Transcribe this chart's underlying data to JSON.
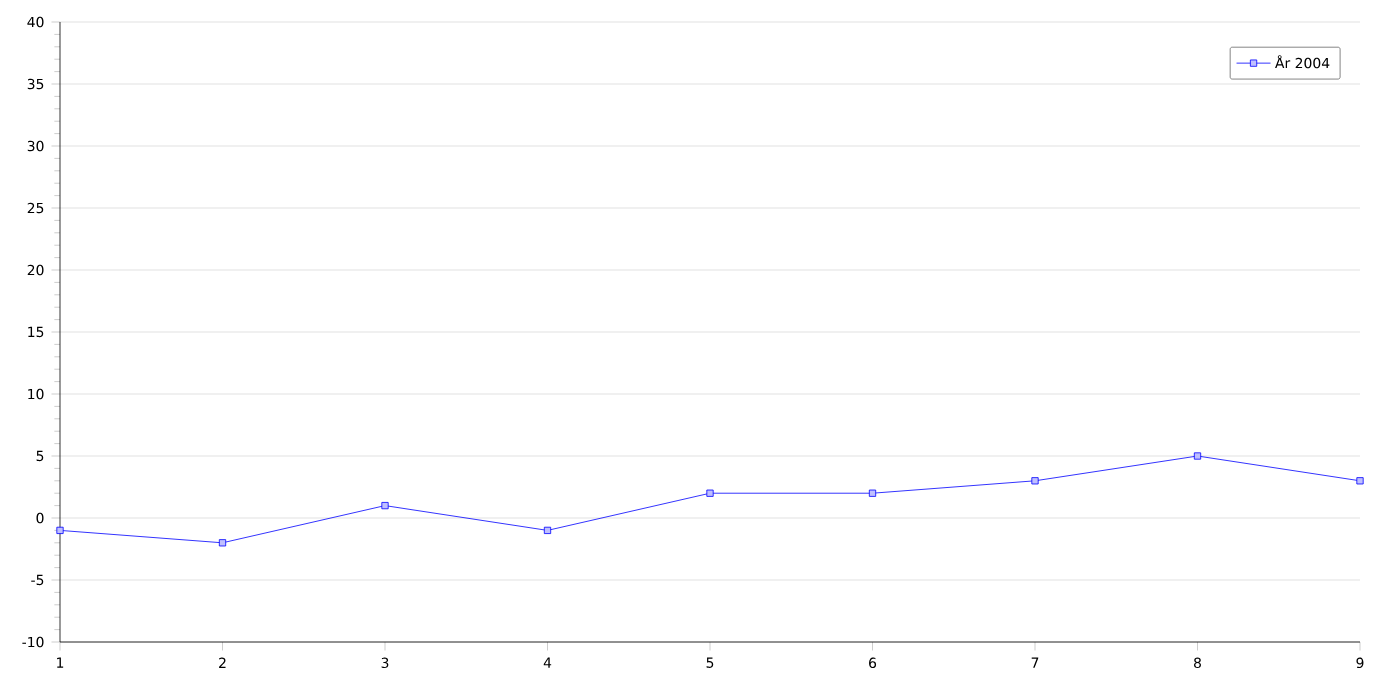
{
  "chart_data": {
    "type": "line",
    "x": [
      1,
      2,
      3,
      4,
      5,
      6,
      7,
      8,
      9
    ],
    "series": [
      {
        "name": "År 2004",
        "color": "#0000ff",
        "values": [
          -1,
          -2,
          1,
          -1,
          2,
          2,
          3,
          5,
          3
        ]
      }
    ],
    "xlim": [
      1,
      9
    ],
    "xticks": [
      1,
      2,
      3,
      4,
      5,
      6,
      7,
      8,
      9
    ],
    "ylim": [
      -10,
      40
    ],
    "yticks": [
      -10,
      -5,
      0,
      5,
      10,
      15,
      20,
      25,
      30,
      35,
      40
    ],
    "grid": "y",
    "legend": "top right",
    "marker": "square",
    "line_style": "solid"
  }
}
